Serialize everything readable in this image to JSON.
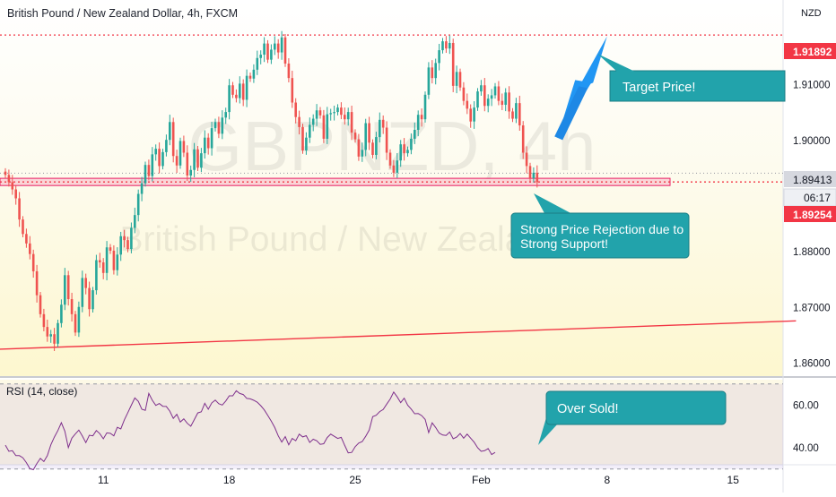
{
  "header": {
    "title": "British Pound / New Zealand Dollar, 4h, FXCM",
    "currency": "NZD"
  },
  "watermark": {
    "line1": "GBPNZD, 4h",
    "line2": "British Pound / New Zealand Dollar"
  },
  "price_labels": {
    "top_line": "1.91892",
    "current": "1.89413",
    "countdown": "06:17",
    "lower_line": "1.89254"
  },
  "annotations": {
    "target": "Target Price!",
    "support": "Strong Price Rejection due to Strong Support!",
    "oversold": "Over Sold!"
  },
  "rsi": {
    "label": "RSI (14, close)"
  },
  "colors": {
    "up": "#26a69a",
    "down": "#ef5350",
    "callout": "#22a3ab",
    "arrow": "#2196f3",
    "rsi_line": "#7e2f8c",
    "line_red": "#f23645"
  },
  "chart_data": [
    {
      "type": "candlestick",
      "title": "British Pound / New Zealand Dollar, 4h, FXCM",
      "ylabel": "NZD",
      "ylim": [
        1.858,
        1.922
      ],
      "y_ticks": [
        1.86,
        1.87,
        1.88,
        1.89,
        1.9,
        1.91
      ],
      "y_tick_labels": [
        "1.86000",
        "1.87000",
        "1.88000",
        "1.89000",
        "1.90000",
        "1.91000"
      ],
      "x_tick_labels": [
        "11",
        "18",
        "25",
        "Feb",
        "8",
        "15"
      ],
      "x_tick_index": [
        28,
        64,
        100,
        136,
        172,
        208
      ],
      "levels": {
        "resistance": 1.91892,
        "support": 1.89254,
        "current": 1.89413
      },
      "support_zone": [
        1.8919,
        1.8932
      ],
      "trendline": {
        "from": {
          "i": -2,
          "price": 1.8625
        },
        "to": {
          "i": 226,
          "price": 1.8676
        }
      },
      "target_arrow": {
        "from": {
          "i": 168,
          "price": 1.902
        },
        "to": {
          "i": 172,
          "price": 1.9187
        }
      },
      "series": [
        {
          "name": "GBPNZD",
          "closes": [
            1.8938,
            1.8925,
            1.8912,
            1.8896,
            1.8858,
            1.8832,
            1.8815,
            1.8796,
            1.8765,
            1.8722,
            1.8688,
            1.8665,
            1.8648,
            1.8652,
            1.8635,
            1.8672,
            1.8705,
            1.8758,
            1.8715,
            1.8688,
            1.8655,
            1.8701,
            1.8753,
            1.8735,
            1.8697,
            1.8731,
            1.8785,
            1.8781,
            1.8762,
            1.8808,
            1.8802,
            1.8767,
            1.8795,
            1.8828,
            1.8821,
            1.8805,
            1.8843,
            1.8866,
            1.8904,
            1.8923,
            1.8956,
            1.8936,
            1.8975,
            1.8985,
            1.8954,
            1.8979,
            1.9001,
            1.9033,
            1.8972,
            1.8955,
            1.8999,
            1.8978,
            1.8937,
            1.8947,
            1.8984,
            1.8951,
            1.8977,
            1.9005,
            1.8986,
            1.9022,
            1.9033,
            1.9012,
            1.9041,
            1.9051,
            1.9099,
            1.9082,
            1.9076,
            1.9102,
            1.9073,
            1.9116,
            1.9111,
            1.9127,
            1.9148,
            1.9154,
            1.9174,
            1.9145,
            1.9163,
            1.9174,
            1.9158,
            1.9185,
            1.9138,
            1.9112,
            1.9068,
            1.9042,
            1.9024,
            1.8982,
            1.9005,
            1.9028,
            1.9039,
            1.9054,
            1.9045,
            1.9003,
            1.9047,
            1.9049,
            1.9051,
            1.9059,
            1.9046,
            1.9038,
            1.9051,
            1.9014,
            1.9002,
            1.8971,
            1.8983,
            1.9031,
            1.8996,
            1.8974,
            1.9006,
            1.9037,
            1.9023,
            1.8978,
            1.8955,
            1.8942,
            1.8964,
            1.8993,
            1.8977,
            1.8983,
            1.9003,
            1.9019,
            1.9046,
            1.9038,
            1.9082,
            1.9131,
            1.9112,
            1.9139,
            1.9162,
            1.9178,
            1.9165,
            1.9175,
            1.9098,
            1.9123,
            1.9095,
            1.9071,
            1.9057,
            1.9034,
            1.9059,
            1.9088,
            1.9099,
            1.9062,
            1.9075,
            1.9081,
            1.9097,
            1.9071,
            1.9064,
            1.9086,
            1.9052,
            1.9039,
            1.9067,
            1.9027,
            1.8978,
            1.8954,
            1.8932,
            1.8942,
            1.8925
          ]
        }
      ]
    },
    {
      "type": "line",
      "title": "RSI (14, close)",
      "ylim": [
        32,
        72
      ],
      "y_ticks": [
        40,
        60
      ],
      "y_tick_labels": [
        "40.00",
        "60.00"
      ],
      "band": [
        30,
        70
      ],
      "series": [
        {
          "name": "RSI",
          "values": [
            41.2,
            38.3,
            38.6,
            36.3,
            36.3,
            35.3,
            33.0,
            30.2,
            29.7,
            32.6,
            35.0,
            33.5,
            36.3,
            41.4,
            45.0,
            48.1,
            51.8,
            47.8,
            40.1,
            44.5,
            46.5,
            48.3,
            45.5,
            42.4,
            45.9,
            45.6,
            48.1,
            46.6,
            44.2,
            47.0,
            46.8,
            45.6,
            49.6,
            48.9,
            53.1,
            56.5,
            60.0,
            63.4,
            61.8,
            58.1,
            57.6,
            65.5,
            62.3,
            59.9,
            60.8,
            59.5,
            59.4,
            57.2,
            53.8,
            55.7,
            52.1,
            53.6,
            51.5,
            50.1,
            53.2,
            56.4,
            56.9,
            60.9,
            58.1,
            61.1,
            62.4,
            60.7,
            60.1,
            62.0,
            64.4,
            64.4,
            66.8,
            65.5,
            65.0,
            63.2,
            63.0,
            62.3,
            61.4,
            59.8,
            57.8,
            55.2,
            52.5,
            49.5,
            45.6,
            42.7,
            45.2,
            41.4,
            44.4,
            43.3,
            46.4,
            45.1,
            45.7,
            42.5,
            44.0,
            43.3,
            41.6,
            41.9,
            44.8,
            46.4,
            45.4,
            44.4,
            44.9,
            41.1,
            37.6,
            37.8,
            40.5,
            42.2,
            42.9,
            45.4,
            48.3,
            54.6,
            55.3,
            57.0,
            58.0,
            60.5,
            62.9,
            66.2,
            63.9,
            61.2,
            63.3,
            60.0,
            58.2,
            56.0,
            56.1,
            55.1,
            53.3,
            47.1,
            51.7,
            49.5,
            46.9,
            46.0,
            45.8,
            47.4,
            44.2,
            45.0,
            46.7,
            44.5,
            46.4,
            44.5,
            42.6,
            40.0,
            38.3,
            38.6,
            39.6,
            36.8,
            37.8
          ]
        }
      ]
    }
  ]
}
